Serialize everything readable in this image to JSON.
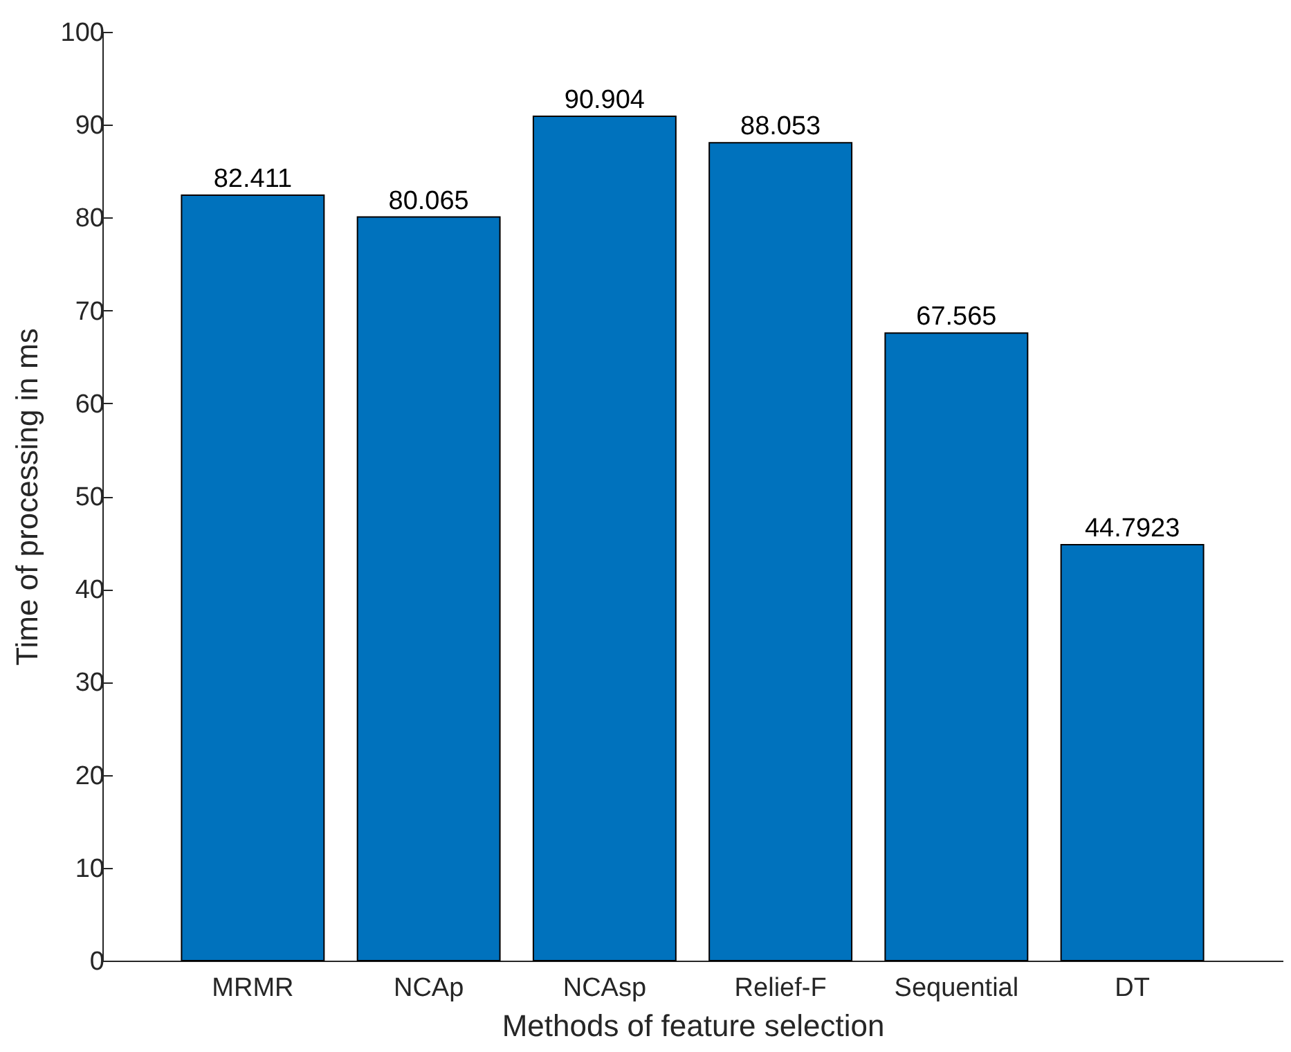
{
  "chart_data": {
    "type": "bar",
    "xlabel": "Methods of feature selection",
    "ylabel": "Time of processing in ms",
    "categories": [
      "MRMR",
      "NCAp",
      "NCAsp",
      "Relief-F",
      "Sequential",
      "DT"
    ],
    "values": [
      82.411,
      80.065,
      90.904,
      88.053,
      67.565,
      44.7923
    ],
    "color": "#0072bd",
    "ylim": [
      0,
      100
    ],
    "yticks": [
      0,
      10,
      20,
      30,
      40,
      50,
      60,
      70,
      80,
      90,
      100
    ],
    "grid": false,
    "data_labels": true
  }
}
